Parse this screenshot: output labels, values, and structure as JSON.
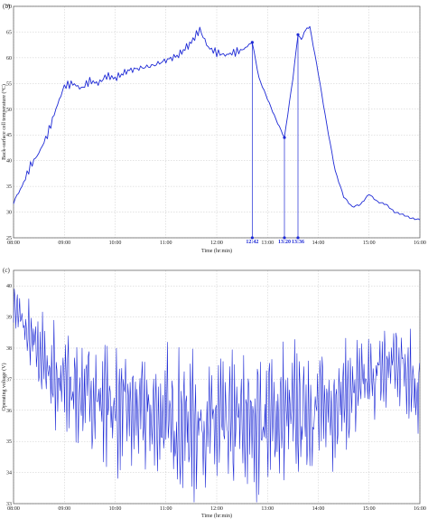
{
  "chart_data": [
    {
      "panel": "(b)",
      "type": "line",
      "xlabel": "Time (hr:min)",
      "ylabel": "Back-surface cell temperature (°C)",
      "xlim": [
        "08:00",
        "16:00"
      ],
      "ylim": [
        25,
        70
      ],
      "x_ticks": [
        "08:00",
        "09:00",
        "10:00",
        "11:00",
        "12:00",
        "13:00",
        "14:00",
        "15:00",
        "16:00"
      ],
      "y_ticks": [
        25,
        30,
        35,
        40,
        45,
        50,
        55,
        60,
        65,
        70
      ],
      "grid": true,
      "series": [
        {
          "color": "#1e2ad6",
          "x": [
            "08:00",
            "08:10",
            "08:20",
            "08:30",
            "08:40",
            "08:50",
            "09:00",
            "09:10",
            "09:20",
            "09:30",
            "09:40",
            "09:50",
            "10:00",
            "10:15",
            "10:30",
            "10:45",
            "11:00",
            "11:15",
            "11:30",
            "11:40",
            "11:50",
            "12:00",
            "12:10",
            "12:20",
            "12:30",
            "12:42",
            "12:50",
            "13:00",
            "13:10",
            "13:20",
            "13:30",
            "13:36",
            "13:40",
            "13:45",
            "13:50",
            "14:00",
            "14:10",
            "14:20",
            "14:30",
            "14:40",
            "14:50",
            "15:00",
            "15:10",
            "15:20",
            "15:30",
            "15:40",
            "15:50",
            "16:00"
          ],
          "y": [
            32,
            35,
            39,
            41.5,
            45,
            50,
            54.5,
            55,
            54,
            55.5,
            55,
            56.5,
            56,
            57.5,
            58,
            58.5,
            59.5,
            60.5,
            63,
            65.5,
            62,
            61,
            60.5,
            61,
            61.5,
            63,
            56,
            52,
            48,
            44.5,
            56,
            64.5,
            63.5,
            65.5,
            66,
            57,
            47,
            38,
            33,
            31,
            31.5,
            33.5,
            32,
            31.5,
            30,
            29.5,
            28.8,
            28.5
          ]
        }
      ],
      "annotations": [
        {
          "label": "12:42",
          "x": "12:42",
          "y": 63
        },
        {
          "label": "13:20",
          "x": "13:20",
          "y": 44.5
        },
        {
          "label": "13:36",
          "x": "13:36",
          "y": 64.5
        }
      ]
    },
    {
      "panel": "(c)",
      "type": "line",
      "xlabel": "Time (hr:min)",
      "ylabel": "Operating voltage (V)",
      "xlim": [
        "08:00",
        "16:00"
      ],
      "ylim": [
        33,
        40.5
      ],
      "x_ticks": [
        "08:00",
        "09:00",
        "10:00",
        "11:00",
        "12:00",
        "13:00",
        "14:00",
        "15:00",
        "16:00"
      ],
      "y_ticks": [
        33,
        34,
        35,
        36,
        37,
        38,
        39,
        40
      ],
      "grid": true,
      "series": [
        {
          "color": "#1e2ad6",
          "x": [
            "08:00",
            "08:15",
            "08:30",
            "08:45",
            "09:00",
            "09:15",
            "09:30",
            "09:45",
            "10:00",
            "10:15",
            "10:30",
            "10:45",
            "11:00",
            "11:15",
            "11:30",
            "11:45",
            "12:00",
            "12:15",
            "12:30",
            "12:45",
            "13:00",
            "13:15",
            "13:30",
            "13:45",
            "14:00",
            "14:15",
            "14:30",
            "14:45",
            "15:00",
            "15:15",
            "15:30",
            "15:45",
            "16:00"
          ],
          "y": [
            39.5,
            38.5,
            37.8,
            37.2,
            36.8,
            36.6,
            36.5,
            36.3,
            36.1,
            36.0,
            35.9,
            35.8,
            35.7,
            35.6,
            35.6,
            35.5,
            35.5,
            35.5,
            35.6,
            35.6,
            35.7,
            35.8,
            35.8,
            35.9,
            36.0,
            36.2,
            36.4,
            36.6,
            36.9,
            37.2,
            37.6,
            37.4,
            36.5
          ],
          "amplitude": [
            0.6,
            1.0,
            1.3,
            1.6,
            1.8,
            1.9,
            2.0,
            2.0,
            2.0,
            2.1,
            2.1,
            2.2,
            2.2,
            2.2,
            2.3,
            2.3,
            2.3,
            2.3,
            2.3,
            2.3,
            2.2,
            2.2,
            2.2,
            2.1,
            2.0,
            1.9,
            1.8,
            1.7,
            1.6,
            1.5,
            1.5,
            1.7,
            2.0
          ]
        }
      ]
    }
  ]
}
